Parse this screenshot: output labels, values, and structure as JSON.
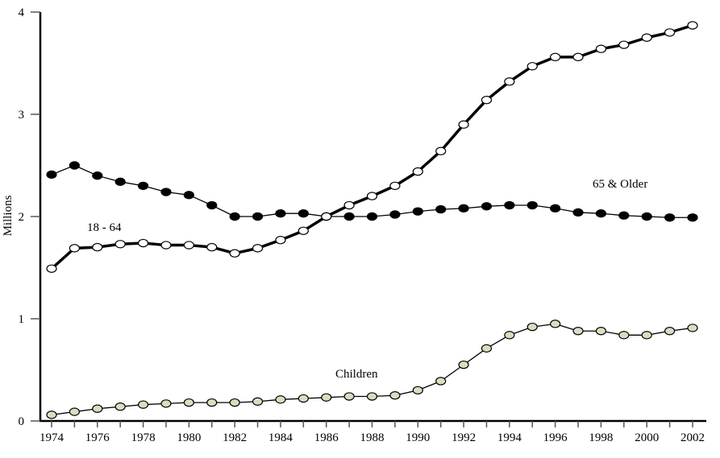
{
  "chart_data": {
    "type": "line",
    "title": "",
    "xlabel": "",
    "ylabel": "Millions",
    "xlim": [
      1974,
      2002
    ],
    "ylim": [
      0,
      4
    ],
    "grid": false,
    "x": [
      1974,
      1975,
      1976,
      1977,
      1978,
      1979,
      1980,
      1981,
      1982,
      1983,
      1984,
      1985,
      1986,
      1987,
      1988,
      1989,
      1990,
      1991,
      1992,
      1993,
      1994,
      1995,
      1996,
      1997,
      1998,
      1999,
      2000,
      2001,
      2002
    ],
    "x_tick_labels": [
      "1974",
      "1976",
      "1978",
      "1980",
      "1982",
      "1984",
      "1986",
      "1988",
      "1990",
      "1992",
      "1994",
      "1996",
      "1998",
      "2000",
      "2002"
    ],
    "y_tick_labels": [
      "0",
      "1",
      "2",
      "3",
      "4"
    ],
    "series": [
      {
        "name": "65 & Older",
        "marker_fill": "#000000",
        "line_width": "thin",
        "values": [
          2.41,
          2.5,
          2.4,
          2.34,
          2.3,
          2.24,
          2.21,
          2.11,
          2.0,
          2.0,
          2.03,
          2.03,
          2.0,
          2.0,
          2.0,
          2.02,
          2.05,
          2.07,
          2.08,
          2.1,
          2.11,
          2.11,
          2.08,
          2.04,
          2.03,
          2.01,
          2.0,
          1.99,
          1.99
        ]
      },
      {
        "name": "18 - 64",
        "marker_fill": "#ffffff",
        "line_width": "thick",
        "values": [
          1.49,
          1.69,
          1.7,
          1.73,
          1.74,
          1.72,
          1.72,
          1.7,
          1.64,
          1.69,
          1.77,
          1.86,
          2.0,
          2.11,
          2.2,
          2.3,
          2.44,
          2.64,
          2.9,
          3.14,
          3.32,
          3.47,
          3.56,
          3.56,
          3.64,
          3.68,
          3.75,
          3.8,
          3.87
        ]
      },
      {
        "name": "Children",
        "marker_fill": "#dddbc0",
        "line_width": "thin",
        "values": [
          0.06,
          0.09,
          0.12,
          0.14,
          0.16,
          0.17,
          0.18,
          0.18,
          0.18,
          0.19,
          0.21,
          0.22,
          0.23,
          0.24,
          0.24,
          0.25,
          0.3,
          0.39,
          0.55,
          0.71,
          0.84,
          0.92,
          0.95,
          0.88,
          0.88,
          0.84,
          0.84,
          0.88,
          0.91
        ]
      }
    ]
  }
}
